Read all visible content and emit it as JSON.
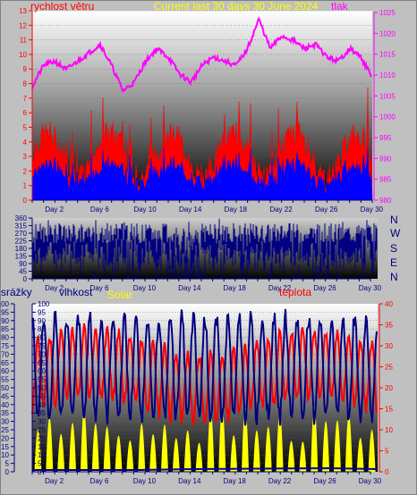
{
  "header": {
    "left": "rychlost větru",
    "center": "Current last 30 days 30 June 2024",
    "right": "tlak"
  },
  "panel1": {
    "wind_ticks": [
      "0",
      "1",
      "2",
      "3",
      "4",
      "5",
      "6",
      "7",
      "8",
      "9",
      "10",
      "11",
      "12",
      "13"
    ],
    "pressure_ticks": [
      "980",
      "985",
      "990",
      "995",
      "1000",
      "1005",
      "1010",
      "1015",
      "1020",
      "1025"
    ],
    "day_ticks": [
      "Day 2",
      "Day 6",
      "Day 10",
      "Day 14",
      "Day 18",
      "Day 22",
      "Day 26",
      "Day 30"
    ]
  },
  "panel2": {
    "dir_ticks": [
      "0",
      "45",
      "90",
      "135",
      "180",
      "225",
      "270",
      "315",
      "360"
    ],
    "compass": [
      "N",
      "W",
      "S",
      "E",
      "N"
    ],
    "day_ticks": [
      "Day 2",
      "Day 6",
      "Day 10",
      "Day 14",
      "Day 18",
      "Day 22",
      "Day 26",
      "Day 30"
    ]
  },
  "panel3": {
    "labels": {
      "rain": "srážky",
      "humidity": "vlhkost",
      "solar": "Solar",
      "temp": "teplota"
    },
    "pct_ticks": [
      "0",
      "5",
      "10",
      "15",
      "20",
      "25",
      "30",
      "35",
      "40",
      "45",
      "50",
      "55",
      "60",
      "65",
      "70",
      "75",
      "80",
      "85",
      "90",
      "95",
      "100"
    ],
    "temp_ticks": [
      "0",
      "5",
      "10",
      "15",
      "20",
      "25",
      "30",
      "35",
      "40"
    ],
    "day_ticks": [
      "Day 2",
      "Day 6",
      "Day 10",
      "Day 14",
      "Day 18",
      "Day 22",
      "Day 26",
      "Day 30"
    ]
  },
  "colors": {
    "wind_gust": "#ff0000",
    "wind_avg": "#0000ff",
    "pressure": "#ff00ff",
    "humidity": "#000080",
    "temperature": "#ff0000",
    "solar": "#ffff00",
    "direction": "#000080",
    "axis_text": "#000080",
    "pressure_text": "#ff00ff"
  }
}
